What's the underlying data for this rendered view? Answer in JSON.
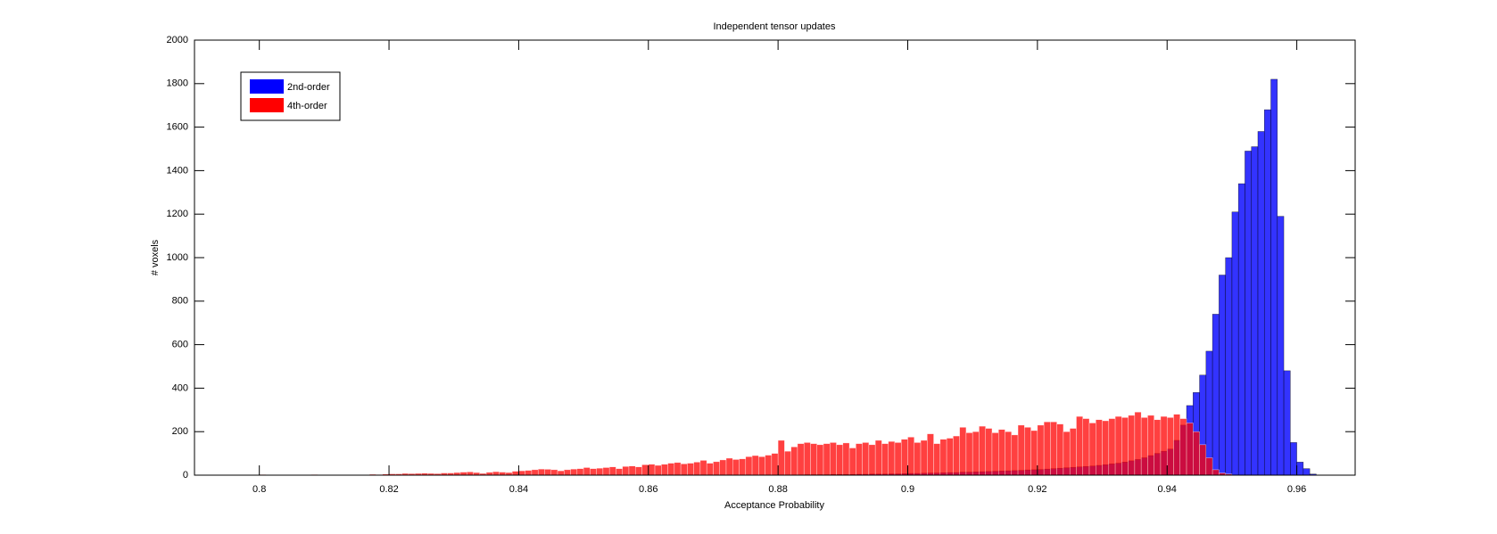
{
  "chart_data": {
    "type": "histogram",
    "title": "Independent tensor updates",
    "x_label": "Acceptance Probability",
    "y_label": "# voxels",
    "xlim": [
      0.79,
      0.969
    ],
    "ylim": [
      0,
      2000
    ],
    "xticks": [
      0.8,
      0.82,
      0.84,
      0.86,
      0.88,
      0.9,
      0.92,
      0.94,
      0.96
    ],
    "yticks": [
      0,
      200,
      400,
      600,
      800,
      1000,
      1200,
      1400,
      1600,
      1800,
      2000
    ],
    "legend": "upper left",
    "bins": [
      0.8,
      0.801,
      0.802,
      0.803,
      0.804,
      0.805,
      0.806,
      0.807,
      0.808,
      0.809,
      0.81,
      0.811,
      0.812,
      0.813,
      0.814,
      0.815,
      0.816,
      0.817,
      0.818,
      0.819,
      0.82,
      0.821,
      0.822,
      0.823,
      0.824,
      0.825,
      0.826,
      0.827,
      0.828,
      0.829,
      0.83,
      0.831,
      0.832,
      0.833,
      0.834,
      0.835,
      0.836,
      0.837,
      0.838,
      0.839,
      0.84,
      0.841,
      0.842,
      0.843,
      0.844,
      0.845,
      0.846,
      0.847,
      0.848,
      0.849,
      0.85,
      0.851,
      0.852,
      0.853,
      0.854,
      0.855,
      0.856,
      0.857,
      0.858,
      0.859,
      0.86,
      0.861,
      0.862,
      0.863,
      0.864,
      0.865,
      0.866,
      0.867,
      0.868,
      0.869,
      0.87,
      0.871,
      0.872,
      0.873,
      0.874,
      0.875,
      0.876,
      0.877,
      0.878,
      0.879,
      0.88,
      0.881,
      0.882,
      0.883,
      0.884,
      0.885,
      0.886,
      0.887,
      0.888,
      0.889,
      0.89,
      0.891,
      0.892,
      0.893,
      0.894,
      0.895,
      0.896,
      0.897,
      0.898,
      0.899,
      0.9,
      0.901,
      0.902,
      0.903,
      0.904,
      0.905,
      0.906,
      0.907,
      0.908,
      0.909,
      0.91,
      0.911,
      0.912,
      0.913,
      0.914,
      0.915,
      0.916,
      0.917,
      0.918,
      0.919,
      0.92,
      0.921,
      0.922,
      0.923,
      0.924,
      0.925,
      0.926,
      0.927,
      0.928,
      0.929,
      0.93,
      0.931,
      0.932,
      0.933,
      0.934,
      0.935,
      0.936,
      0.937,
      0.938,
      0.939,
      0.94,
      0.941,
      0.942,
      0.943,
      0.944,
      0.945,
      0.946,
      0.947,
      0.948,
      0.949,
      0.95,
      0.951,
      0.952,
      0.953,
      0.954,
      0.955,
      0.956,
      0.957,
      0.958,
      0.959,
      0.96,
      0.961,
      0.962,
      0.963,
      0.964
    ],
    "series": [
      {
        "name": "2nd-order",
        "color": "#0000ff",
        "values": [
          0,
          0,
          0,
          0,
          0,
          0,
          0,
          0,
          0,
          0,
          0,
          0,
          0,
          0,
          0,
          0,
          0,
          0,
          0,
          0,
          0,
          0,
          0,
          0,
          0,
          0,
          0,
          0,
          0,
          0,
          0,
          0,
          0,
          0,
          0,
          0,
          0,
          0,
          0,
          0,
          0,
          0,
          0,
          0,
          0,
          0,
          0,
          0,
          0,
          0,
          0,
          0,
          0,
          0,
          0,
          0,
          0,
          0,
          0,
          0,
          0,
          0,
          0,
          0,
          0,
          0,
          0,
          0,
          0,
          0,
          0,
          0,
          0,
          0,
          0,
          0,
          0,
          0,
          0,
          0,
          1,
          1,
          1,
          1,
          2,
          2,
          2,
          2,
          3,
          3,
          3,
          3,
          4,
          4,
          5,
          5,
          5,
          6,
          6,
          7,
          8,
          8,
          9,
          10,
          10,
          11,
          12,
          12,
          14,
          14,
          15,
          16,
          17,
          18,
          19,
          20,
          21,
          22,
          24,
          25,
          26,
          28,
          30,
          32,
          34,
          36,
          38,
          40,
          42,
          45,
          48,
          52,
          55,
          60,
          66,
          72,
          80,
          90,
          100,
          110,
          120,
          160,
          230,
          320,
          380,
          460,
          570,
          740,
          920,
          1000,
          1210,
          1340,
          1490,
          1510,
          1580,
          1680,
          1820,
          1190,
          480,
          150,
          60,
          30,
          5,
          0
        ]
      },
      {
        "name": "4th-order",
        "color": "#ff0000",
        "values": [
          3,
          0,
          0,
          0,
          0,
          2,
          2,
          0,
          3,
          0,
          0,
          1,
          0,
          0,
          0,
          0,
          2,
          4,
          3,
          5,
          6,
          6,
          8,
          7,
          8,
          9,
          8,
          7,
          10,
          10,
          12,
          14,
          15,
          12,
          8,
          13,
          16,
          14,
          12,
          18,
          20,
          22,
          25,
          28,
          27,
          25,
          20,
          25,
          28,
          30,
          35,
          30,
          32,
          35,
          38,
          30,
          40,
          42,
          38,
          48,
          50,
          45,
          50,
          55,
          58,
          52,
          55,
          60,
          68,
          55,
          62,
          70,
          78,
          72,
          75,
          85,
          90,
          85,
          92,
          100,
          160,
          110,
          130,
          145,
          150,
          145,
          140,
          145,
          150,
          140,
          148,
          125,
          145,
          150,
          140,
          160,
          145,
          155,
          150,
          165,
          175,
          150,
          160,
          190,
          145,
          165,
          170,
          180,
          220,
          195,
          200,
          225,
          215,
          195,
          210,
          200,
          185,
          230,
          220,
          205,
          230,
          245,
          245,
          235,
          200,
          215,
          270,
          260,
          240,
          255,
          250,
          260,
          270,
          265,
          275,
          290,
          265,
          275,
          255,
          270,
          265,
          280,
          260,
          240,
          200,
          140,
          80,
          25,
          10,
          5,
          0,
          0,
          0,
          0,
          0,
          0,
          0,
          0,
          0,
          0,
          0,
          0,
          0,
          0
        ]
      }
    ]
  }
}
